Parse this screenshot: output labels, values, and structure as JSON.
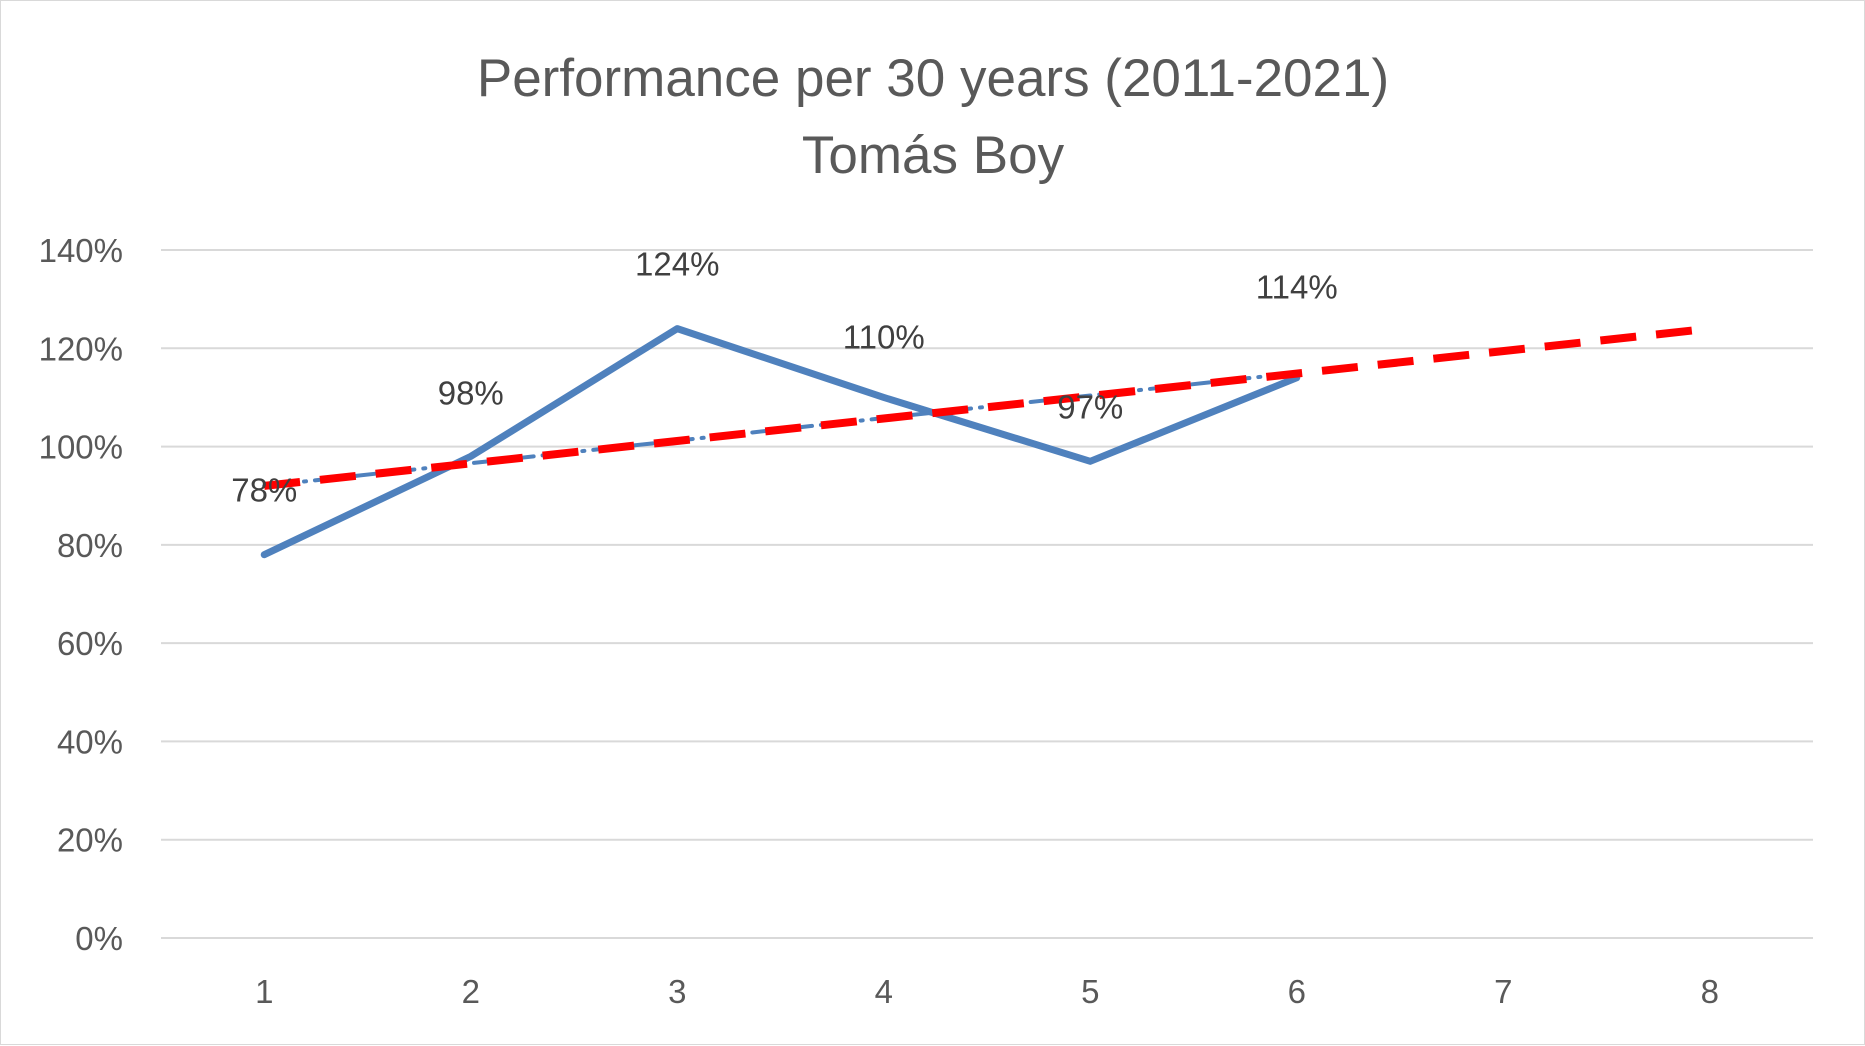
{
  "chart_data": {
    "type": "line",
    "title": "Performance per 30 years (2011-2021)",
    "subtitle": "Tomás Boy",
    "x": [
      1,
      2,
      3,
      4,
      5,
      6
    ],
    "x_categories": [
      "1",
      "2",
      "3",
      "4",
      "5",
      "6",
      "7",
      "8"
    ],
    "xlim": [
      1,
      8
    ],
    "ylim": [
      0,
      1.4
    ],
    "y_ticks": [
      0,
      0.2,
      0.4,
      0.6,
      0.8,
      1.0,
      1.2,
      1.4
    ],
    "y_tick_labels": [
      "0%",
      "20%",
      "40%",
      "60%",
      "80%",
      "100%",
      "120%",
      "140%"
    ],
    "series": [
      {
        "values": [
          0.78,
          0.98,
          1.24,
          1.1,
          0.97,
          1.14
        ],
        "labels": [
          "78%",
          "98%",
          "124%",
          "110%",
          "97%",
          "114%"
        ],
        "color": "#4f81bd",
        "style": "solid"
      }
    ],
    "trendlines": [
      {
        "kind": "linear",
        "x": [
          1,
          6
        ],
        "values": [
          0.92,
          1.15
        ],
        "color": "#4f81bd",
        "style": "dotted"
      },
      {
        "kind": "linear-forecast",
        "x": [
          1,
          8
        ],
        "values": [
          0.92,
          1.24
        ],
        "color": "#ff0000",
        "style": "dashed"
      }
    ],
    "grid": true,
    "legend": "none"
  }
}
